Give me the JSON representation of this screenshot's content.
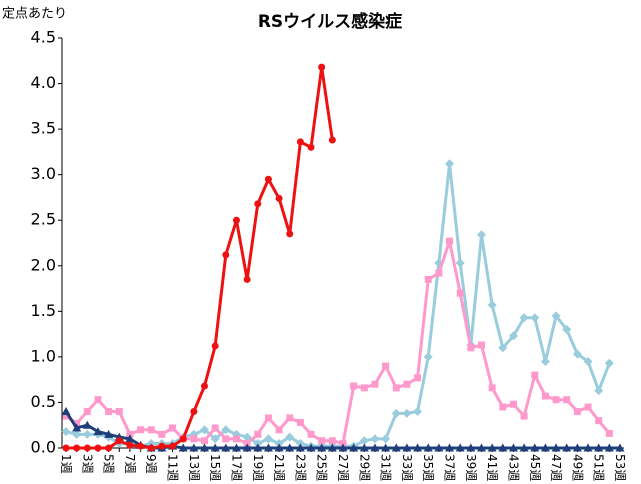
{
  "chart_data": {
    "type": "line",
    "title": "RSウイルス感染症",
    "y_label": "定点あたり",
    "categories": [
      "1週",
      null,
      "3週",
      null,
      "5週",
      null,
      "7週",
      null,
      "9週",
      null,
      "11週",
      null,
      "13週",
      null,
      "15週",
      null,
      "17週",
      null,
      "19週",
      null,
      "21週",
      null,
      "23週",
      null,
      "25週",
      null,
      "27週",
      null,
      "29週",
      null,
      "31週",
      null,
      "33週",
      null,
      "35週",
      null,
      "37週",
      null,
      "39週",
      null,
      "41週",
      null,
      "43週",
      null,
      "45週",
      null,
      "47週",
      null,
      "49週",
      null,
      "51週",
      null,
      "53週"
    ],
    "ylim": [
      0,
      4.5
    ],
    "yticks": [
      {
        "value": 0,
        "label": "0.0"
      },
      0.5,
      {
        "value": 1,
        "label": "1.0"
      },
      1.5,
      {
        "value": 2,
        "label": "2.0"
      },
      2.5,
      {
        "value": 3,
        "label": "3.0"
      },
      3.5,
      {
        "value": 4,
        "label": "4.0"
      },
      4.5
    ],
    "series": [
      {
        "color": "#99ccdd",
        "marker": "diamond",
        "values": [
          0.18,
          0.15,
          0.15,
          0.15,
          0.12,
          0.05,
          0.05,
          0.02,
          0.05,
          0.05,
          0.05,
          0.12,
          0.15,
          0.2,
          0.1,
          0.2,
          0.15,
          0.12,
          0.05,
          0.1,
          0.05,
          0.12,
          0.05,
          0.02,
          0.02,
          0.02,
          0.02,
          0.02,
          0.08,
          0.1,
          0.1,
          0.38,
          0.38,
          0.4,
          1.0,
          2.03,
          3.12,
          2.03,
          1.13,
          2.34,
          1.57,
          1.1,
          1.23,
          1.43,
          1.43,
          0.95,
          1.45,
          1.3,
          1.03,
          0.95,
          0.63,
          0.93,
          null
        ]
      },
      {
        "color": "#ff99cc",
        "marker": "square",
        "values": [
          0.35,
          0.27,
          0.4,
          0.53,
          0.4,
          0.4,
          0.15,
          0.2,
          0.2,
          0.15,
          0.22,
          0.1,
          0.1,
          0.08,
          0.22,
          0.1,
          0.1,
          0.05,
          0.15,
          0.33,
          0.2,
          0.33,
          0.28,
          0.15,
          0.08,
          0.08,
          0.05,
          0.68,
          0.66,
          0.7,
          0.9,
          0.66,
          0.7,
          0.77,
          1.85,
          1.92,
          2.27,
          1.7,
          1.1,
          1.13,
          0.66,
          0.45,
          0.48,
          0.35,
          0.8,
          0.57,
          0.53,
          0.53,
          0.4,
          0.45,
          0.3,
          0.16,
          null
        ]
      },
      {
        "color": "#1f3f7a",
        "marker": "triangle",
        "values": [
          0.4,
          0.22,
          0.25,
          0.18,
          0.15,
          0.12,
          0.1,
          0.03,
          0,
          0,
          0.02,
          0,
          0,
          0,
          0,
          0,
          0,
          0,
          0,
          0,
          0,
          0,
          0,
          0,
          0,
          0,
          0,
          0,
          0,
          0,
          0,
          0,
          0,
          0,
          0,
          0,
          0,
          0,
          0,
          0,
          0,
          0,
          0,
          0,
          0,
          0,
          0,
          0,
          0,
          0,
          0,
          0,
          0
        ]
      },
      {
        "color": "#ee1111",
        "marker": "circle",
        "values": [
          0,
          0,
          0,
          0,
          0,
          0.08,
          0.03,
          0.02,
          0,
          0.02,
          0.02,
          0.1,
          0.4,
          0.68,
          1.12,
          2.12,
          2.5,
          1.85,
          2.68,
          2.95,
          2.74,
          2.35,
          3.36,
          3.3,
          4.18,
          3.38,
          null,
          null,
          null,
          null,
          null,
          null,
          null,
          null,
          null,
          null,
          null,
          null,
          null,
          null,
          null,
          null,
          null,
          null,
          null,
          null,
          null,
          null,
          null,
          null,
          null,
          null,
          null
        ]
      }
    ]
  }
}
